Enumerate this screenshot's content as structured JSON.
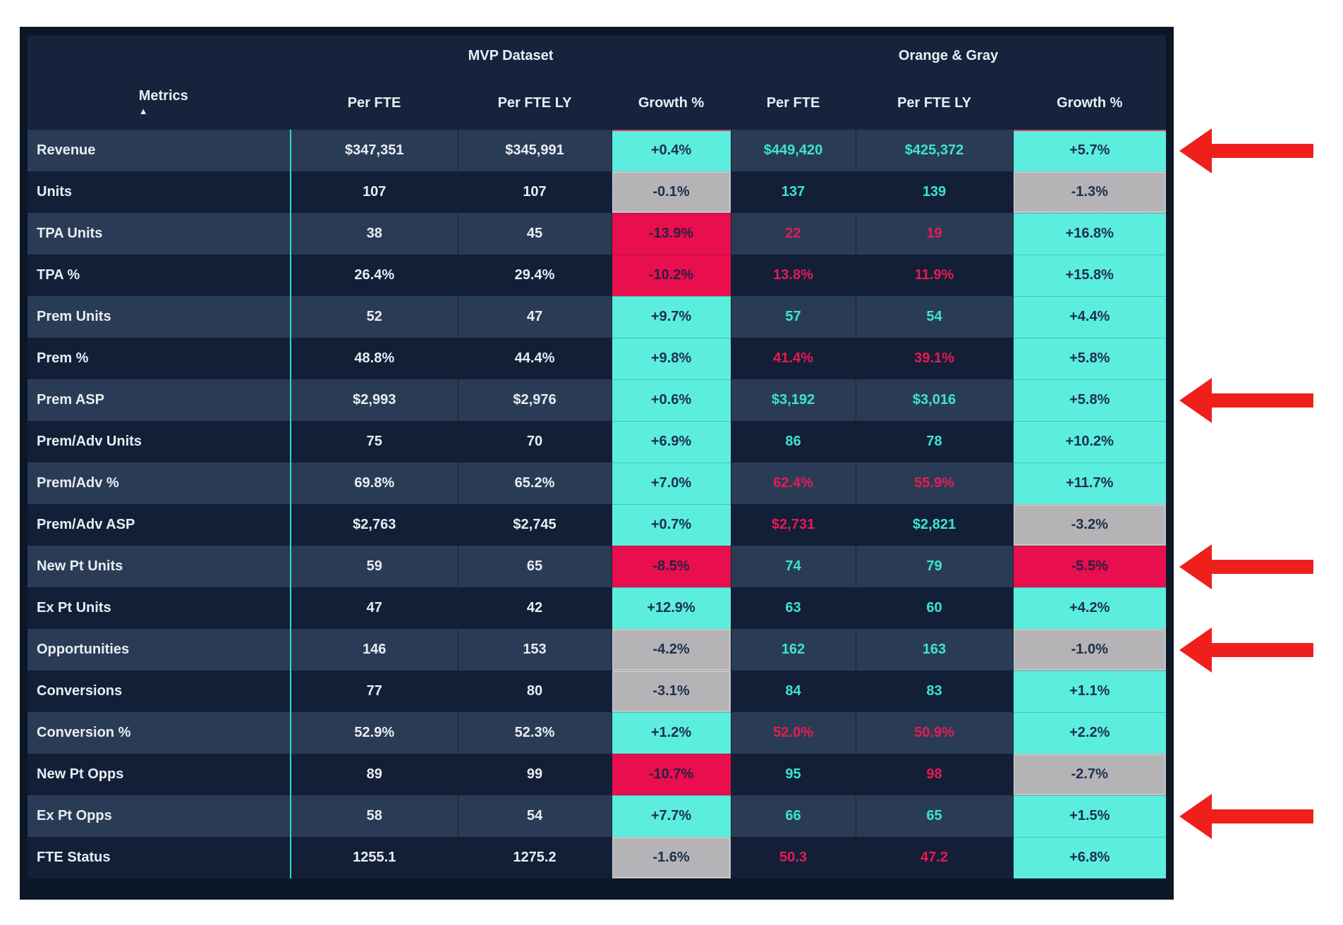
{
  "table": {
    "metrics_header": "Metrics",
    "sort_icon": "▲",
    "groups": [
      "MVP Dataset",
      "Orange & Gray"
    ],
    "columns": [
      "Per FTE",
      "Per FTE LY",
      "Growth %",
      "Per FTE",
      "Per FTE LY",
      "Growth %"
    ],
    "rows": [
      {
        "metric": "Revenue",
        "m_fte": "$347,351",
        "m_ly": "$345,991",
        "m_g": "+0.4%",
        "m_g_s": "pos",
        "o_fte": "$449,420",
        "o_fte_s": "t",
        "o_ly": "$425,372",
        "o_ly_s": "t",
        "o_g": "+5.7%",
        "o_g_s": "pos",
        "arrow": true
      },
      {
        "metric": "Units",
        "m_fte": "107",
        "m_ly": "107",
        "m_g": "-0.1%",
        "m_g_s": "neu",
        "o_fte": "137",
        "o_fte_s": "t",
        "o_ly": "139",
        "o_ly_s": "t",
        "o_g": "-1.3%",
        "o_g_s": "neu",
        "arrow": false
      },
      {
        "metric": "TPA Units",
        "m_fte": "38",
        "m_ly": "45",
        "m_g": "-13.9%",
        "m_g_s": "neg",
        "o_fte": "22",
        "o_fte_s": "r",
        "o_ly": "19",
        "o_ly_s": "r",
        "o_g": "+16.8%",
        "o_g_s": "pos",
        "arrow": false
      },
      {
        "metric": "TPA %",
        "m_fte": "26.4%",
        "m_ly": "29.4%",
        "m_g": "-10.2%",
        "m_g_s": "neg",
        "o_fte": "13.8%",
        "o_fte_s": "r",
        "o_ly": "11.9%",
        "o_ly_s": "r",
        "o_g": "+15.8%",
        "o_g_s": "pos",
        "arrow": false
      },
      {
        "metric": "Prem Units",
        "m_fte": "52",
        "m_ly": "47",
        "m_g": "+9.7%",
        "m_g_s": "pos",
        "o_fte": "57",
        "o_fte_s": "t",
        "o_ly": "54",
        "o_ly_s": "t",
        "o_g": "+4.4%",
        "o_g_s": "pos",
        "arrow": false
      },
      {
        "metric": "Prem %",
        "m_fte": "48.8%",
        "m_ly": "44.4%",
        "m_g": "+9.8%",
        "m_g_s": "pos",
        "o_fte": "41.4%",
        "o_fte_s": "r",
        "o_ly": "39.1%",
        "o_ly_s": "r",
        "o_g": "+5.8%",
        "o_g_s": "pos",
        "arrow": false
      },
      {
        "metric": "Prem ASP",
        "m_fte": "$2,993",
        "m_ly": "$2,976",
        "m_g": "+0.6%",
        "m_g_s": "pos",
        "o_fte": "$3,192",
        "o_fte_s": "t",
        "o_ly": "$3,016",
        "o_ly_s": "t",
        "o_g": "+5.8%",
        "o_g_s": "pos",
        "arrow": true
      },
      {
        "metric": "Prem/Adv Units",
        "m_fte": "75",
        "m_ly": "70",
        "m_g": "+6.9%",
        "m_g_s": "pos",
        "o_fte": "86",
        "o_fte_s": "t",
        "o_ly": "78",
        "o_ly_s": "t",
        "o_g": "+10.2%",
        "o_g_s": "pos",
        "arrow": false
      },
      {
        "metric": "Prem/Adv %",
        "m_fte": "69.8%",
        "m_ly": "65.2%",
        "m_g": "+7.0%",
        "m_g_s": "pos",
        "o_fte": "62.4%",
        "o_fte_s": "r",
        "o_ly": "55.9%",
        "o_ly_s": "r",
        "o_g": "+11.7%",
        "o_g_s": "pos",
        "arrow": false
      },
      {
        "metric": "Prem/Adv ASP",
        "m_fte": "$2,763",
        "m_ly": "$2,745",
        "m_g": "+0.7%",
        "m_g_s": "pos",
        "o_fte": "$2,731",
        "o_fte_s": "r",
        "o_ly": "$2,821",
        "o_ly_s": "t",
        "o_g": "-3.2%",
        "o_g_s": "neu",
        "arrow": false
      },
      {
        "metric": "New Pt Units",
        "m_fte": "59",
        "m_ly": "65",
        "m_g": "-8.5%",
        "m_g_s": "neg",
        "o_fte": "74",
        "o_fte_s": "t",
        "o_ly": "79",
        "o_ly_s": "t",
        "o_g": "-5.5%",
        "o_g_s": "neg",
        "arrow": true
      },
      {
        "metric": "Ex Pt Units",
        "m_fte": "47",
        "m_ly": "42",
        "m_g": "+12.9%",
        "m_g_s": "pos",
        "o_fte": "63",
        "o_fte_s": "t",
        "o_ly": "60",
        "o_ly_s": "t",
        "o_g": "+4.2%",
        "o_g_s": "pos",
        "arrow": false
      },
      {
        "metric": "Opportunities",
        "m_fte": "146",
        "m_ly": "153",
        "m_g": "-4.2%",
        "m_g_s": "neu",
        "o_fte": "162",
        "o_fte_s": "t",
        "o_ly": "163",
        "o_ly_s": "t",
        "o_g": "-1.0%",
        "o_g_s": "neu",
        "arrow": true
      },
      {
        "metric": "Conversions",
        "m_fte": "77",
        "m_ly": "80",
        "m_g": "-3.1%",
        "m_g_s": "neu",
        "o_fte": "84",
        "o_fte_s": "t",
        "o_ly": "83",
        "o_ly_s": "t",
        "o_g": "+1.1%",
        "o_g_s": "pos",
        "arrow": false
      },
      {
        "metric": "Conversion %",
        "m_fte": "52.9%",
        "m_ly": "52.3%",
        "m_g": "+1.2%",
        "m_g_s": "pos",
        "o_fte": "52.0%",
        "o_fte_s": "r",
        "o_ly": "50.9%",
        "o_ly_s": "r",
        "o_g": "+2.2%",
        "o_g_s": "pos",
        "arrow": false
      },
      {
        "metric": "New Pt Opps",
        "m_fte": "89",
        "m_ly": "99",
        "m_g": "-10.7%",
        "m_g_s": "neg",
        "o_fte": "95",
        "o_fte_s": "t",
        "o_ly": "98",
        "o_ly_s": "r",
        "o_g": "-2.7%",
        "o_g_s": "neu",
        "arrow": false
      },
      {
        "metric": "Ex Pt Opps",
        "m_fte": "58",
        "m_ly": "54",
        "m_g": "+7.7%",
        "m_g_s": "pos",
        "o_fte": "66",
        "o_fte_s": "t",
        "o_ly": "65",
        "o_ly_s": "t",
        "o_g": "+1.5%",
        "o_g_s": "pos",
        "arrow": true
      },
      {
        "metric": "FTE Status",
        "m_fte": "1255.1",
        "m_ly": "1275.2",
        "m_g": "-1.6%",
        "m_g_s": "neu",
        "o_fte": "50.3",
        "o_fte_s": "r",
        "o_ly": "47.2",
        "o_ly_s": "r",
        "o_g": "+6.8%",
        "o_g_s": "pos",
        "arrow": false
      }
    ]
  },
  "colors": {
    "frame": "#0b1727",
    "header_bg": "#15233c",
    "row_light": "#2a3c55",
    "row_dark": "#121f37",
    "teal_divider": "#2edacb",
    "growth_positive_bg": "#5beede",
    "growth_negative_bg": "#e90e4e",
    "growth_neutral_bg": "#b5b3b6",
    "good_value_text": "#3ce4d3",
    "bad_value_text": "#e81a52",
    "white_text": "#e9edf4",
    "arrow_red": "#ef1f1b"
  }
}
